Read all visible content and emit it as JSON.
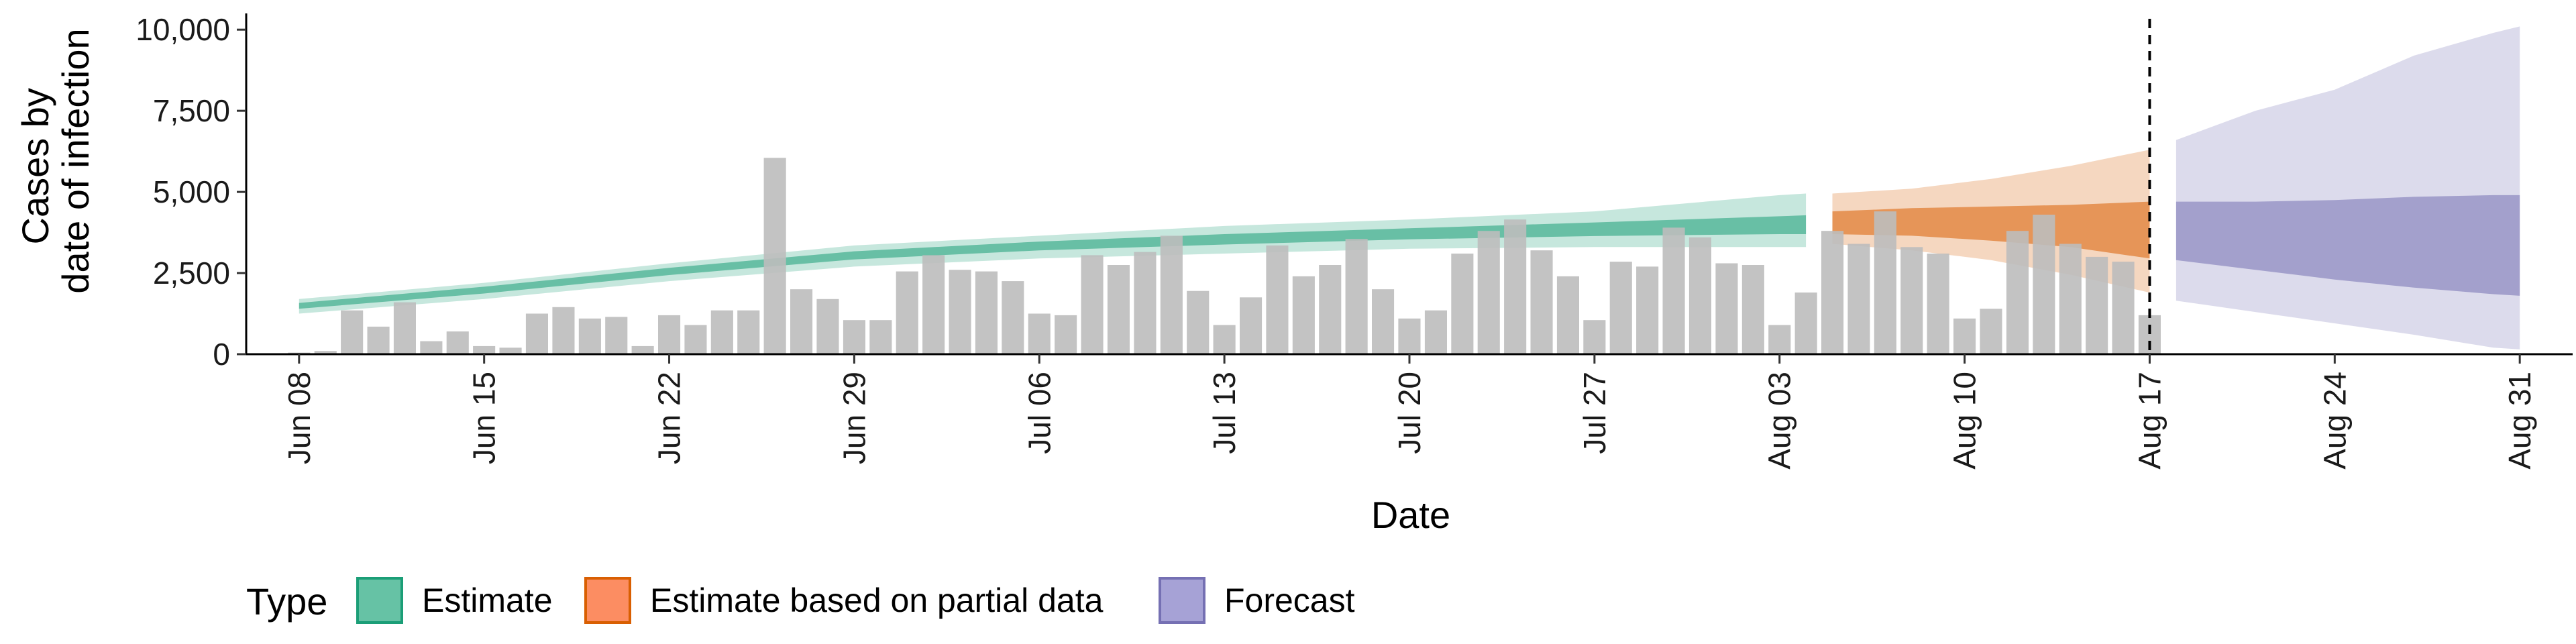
{
  "chart_data": {
    "type": "bar",
    "xlabel": "Date",
    "ylabel_lines": [
      "Cases by",
      "date of infection"
    ],
    "ylim": [
      0,
      10500
    ],
    "yticks": [
      0,
      2500,
      5000,
      7500,
      10000
    ],
    "ytick_labels": [
      "0",
      "2,500",
      "5,000",
      "7,500",
      "10,000"
    ],
    "x_range": [
      "2020-06-06",
      "2020-09-02"
    ],
    "xtick_dates": [
      "2020-06-08",
      "2020-06-15",
      "2020-06-22",
      "2020-06-29",
      "2020-07-06",
      "2020-07-13",
      "2020-07-20",
      "2020-07-27",
      "2020-08-03",
      "2020-08-10",
      "2020-08-17",
      "2020-08-24",
      "2020-08-31"
    ],
    "xtick_labels": [
      "Jun 08",
      "Jun 15",
      "Jun 22",
      "Jun 29",
      "Jul 06",
      "Jul 13",
      "Jul 20",
      "Jul 27",
      "Aug 03",
      "Aug 10",
      "Aug 17",
      "Aug 24",
      "Aug 31"
    ],
    "reference_line_date": "2020-08-17",
    "bars": {
      "start_date": "2020-06-08",
      "color": "#bdbdbd",
      "values": [
        50,
        100,
        1350,
        850,
        1600,
        400,
        700,
        250,
        200,
        1250,
        1450,
        1100,
        1150,
        250,
        1200,
        900,
        1350,
        1350,
        6050,
        2000,
        1700,
        1050,
        1050,
        2550,
        3050,
        2600,
        2550,
        2250,
        1250,
        1200,
        3050,
        2750,
        3150,
        3650,
        1950,
        900,
        1750,
        3350,
        2400,
        2750,
        3550,
        2000,
        1100,
        1350,
        3100,
        3800,
        4150,
        3200,
        2400,
        1050,
        2850,
        2700,
        3900,
        3600,
        2800,
        2750,
        900,
        1900,
        3800,
        3400,
        4400,
        3300,
        3100,
        1100,
        1400,
        3800,
        4300,
        3400,
        3000,
        2850,
        1200
      ]
    },
    "legend": {
      "title": "Type",
      "placement": "bottom-left",
      "entries": [
        {
          "label": "Estimate",
          "fill": "#66c2a5",
          "stroke": "#1b9e77"
        },
        {
          "label": "Estimate based on partial data",
          "fill": "#fc8d62",
          "stroke": "#d95f02"
        },
        {
          "label": "Forecast",
          "fill": "#a6a2d6",
          "stroke": "#7570b3"
        }
      ]
    },
    "bands": [
      {
        "name": "Estimate",
        "color": "#1b9e77",
        "inner_opacity": 0.55,
        "outer_opacity": 0.25,
        "points": [
          {
            "date": "2020-06-08",
            "outer": [
              1250,
              1700
            ],
            "inner": [
              1400,
              1580
            ]
          },
          {
            "date": "2020-06-15",
            "outer": [
              1700,
              2200
            ],
            "inner": [
              1870,
              2080
            ]
          },
          {
            "date": "2020-06-22",
            "outer": [
              2250,
              2800
            ],
            "inner": [
              2440,
              2660
            ]
          },
          {
            "date": "2020-06-29",
            "outer": [
              2700,
              3350
            ],
            "inner": [
              2920,
              3170
            ]
          },
          {
            "date": "2020-07-06",
            "outer": [
              2950,
              3650
            ],
            "inner": [
              3200,
              3470
            ]
          },
          {
            "date": "2020-07-13",
            "outer": [
              3100,
              3950
            ],
            "inner": [
              3380,
              3700
            ]
          },
          {
            "date": "2020-07-20",
            "outer": [
              3250,
              4150
            ],
            "inner": [
              3540,
              3880
            ]
          },
          {
            "date": "2020-07-27",
            "outer": [
              3300,
              4400
            ],
            "inner": [
              3640,
              4060
            ]
          },
          {
            "date": "2020-08-03",
            "outer": [
              3300,
              4900
            ],
            "inner": [
              3700,
              4250
            ]
          },
          {
            "date": "2020-08-04",
            "outer": [
              3300,
              4950
            ],
            "inner": [
              3700,
              4280
            ]
          }
        ]
      },
      {
        "name": "Estimate based on partial data",
        "color": "#d95f02",
        "inner_opacity": 0.55,
        "outer_opacity": 0.25,
        "points": [
          {
            "date": "2020-08-05",
            "outer": [
              3400,
              4950
            ],
            "inner": [
              3700,
              4400
            ]
          },
          {
            "date": "2020-08-08",
            "outer": [
              3200,
              5100
            ],
            "inner": [
              3650,
              4500
            ]
          },
          {
            "date": "2020-08-11",
            "outer": [
              2900,
              5400
            ],
            "inner": [
              3500,
              4550
            ]
          },
          {
            "date": "2020-08-14",
            "outer": [
              2450,
              5800
            ],
            "inner": [
              3300,
              4600
            ]
          },
          {
            "date": "2020-08-17",
            "outer": [
              1900,
              6300
            ],
            "inner": [
              2950,
              4700
            ]
          }
        ]
      },
      {
        "name": "Forecast",
        "color": "#7570b3",
        "inner_opacity": 0.55,
        "outer_opacity": 0.25,
        "points": [
          {
            "date": "2020-08-18",
            "outer": [
              1650,
              6600
            ],
            "inner": [
              2900,
              4700
            ]
          },
          {
            "date": "2020-08-21",
            "outer": [
              1300,
              7500
            ],
            "inner": [
              2600,
              4700
            ]
          },
          {
            "date": "2020-08-24",
            "outer": [
              950,
              8150
            ],
            "inner": [
              2300,
              4750
            ]
          },
          {
            "date": "2020-08-27",
            "outer": [
              600,
              9200
            ],
            "inner": [
              2050,
              4850
            ]
          },
          {
            "date": "2020-08-30",
            "outer": [
              200,
              9900
            ],
            "inner": [
              1850,
              4900
            ]
          },
          {
            "date": "2020-08-31",
            "outer": [
              150,
              10100
            ],
            "inner": [
              1800,
              4900
            ]
          }
        ]
      }
    ]
  }
}
